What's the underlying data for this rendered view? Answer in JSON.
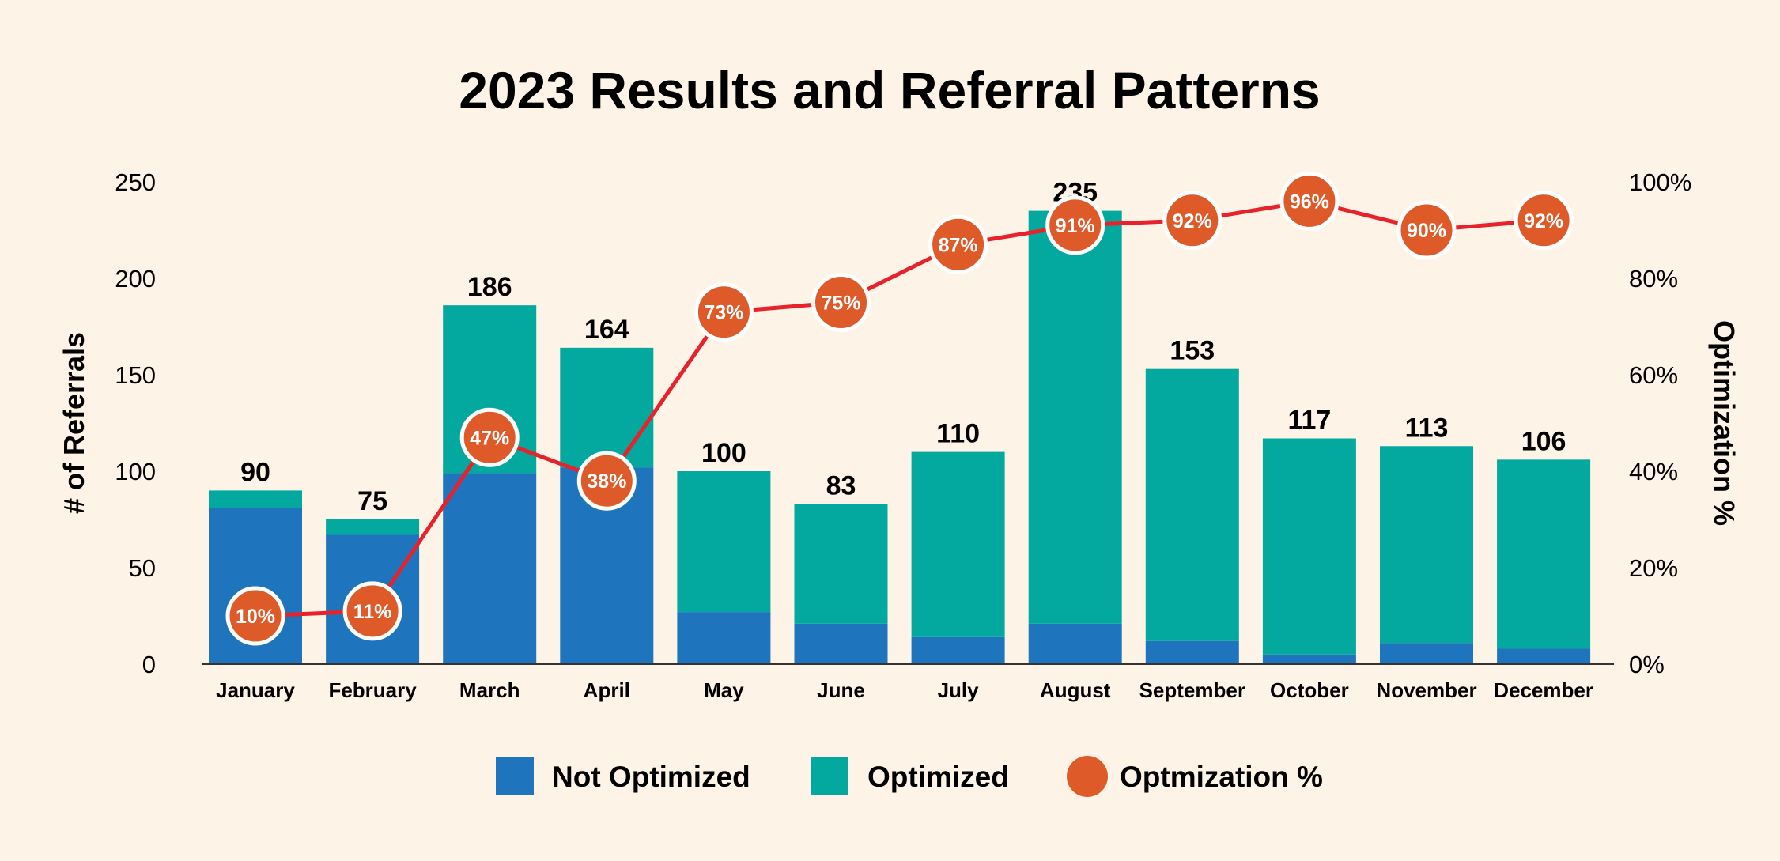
{
  "chart_data": {
    "type": "bar",
    "stacked": true,
    "title": "2023 Results and Referral Patterns",
    "ylabel": "# of Referrals",
    "y2label": "Optimization %",
    "ylim": [
      0,
      250
    ],
    "y2lim": [
      0,
      100
    ],
    "yticks": [
      "0",
      "50",
      "100",
      "150",
      "200",
      "250"
    ],
    "y2ticks": [
      "0%",
      "20%",
      "40%",
      "60%",
      "80%",
      "100%"
    ],
    "categories": [
      "January",
      "February",
      "March",
      "April",
      "May",
      "June",
      "July",
      "August",
      "September",
      "October",
      "November",
      "December"
    ],
    "totals": [
      90,
      75,
      186,
      164,
      100,
      83,
      110,
      235,
      153,
      117,
      113,
      106
    ],
    "series": [
      {
        "name": "Not Optimized",
        "type": "bar",
        "color": "#1f75bd",
        "values": [
          81,
          67,
          99,
          102,
          27,
          21,
          14,
          21,
          12,
          5,
          11,
          8
        ]
      },
      {
        "name": "Optimized",
        "type": "bar",
        "color": "#03a89e",
        "values": [
          9,
          8,
          87,
          62,
          73,
          62,
          96,
          214,
          141,
          112,
          102,
          98
        ]
      },
      {
        "name": "Optmization %",
        "type": "line",
        "axis": "right",
        "color": "#de5a29",
        "line_color": "#e8222a",
        "values": [
          10,
          11,
          47,
          38,
          73,
          75,
          87,
          91,
          92,
          96,
          90,
          92
        ]
      }
    ],
    "point_labels": [
      "10%",
      "11%",
      "47%",
      "38%",
      "73%",
      "75%",
      "87%",
      "91%",
      "92%",
      "96%",
      "90%",
      "92%"
    ],
    "legend": {
      "placement": "bottom-center",
      "items": [
        "Not Optimized",
        "Optimized",
        "Optmization %"
      ]
    },
    "grid": false
  }
}
